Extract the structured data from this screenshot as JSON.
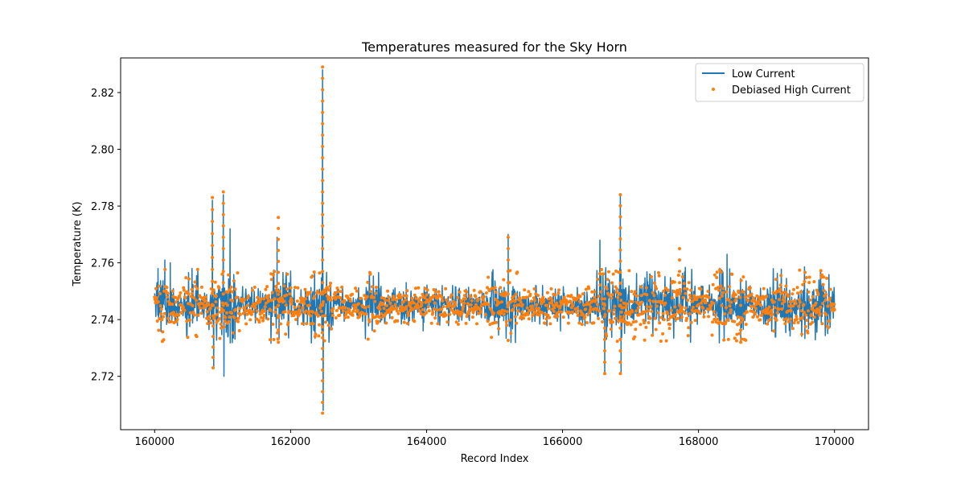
{
  "chart_data": {
    "type": "line",
    "title": "Temperatures measured for the Sky Horn",
    "xlabel": "Record Index",
    "ylabel": "Temperature (K)",
    "xlim": [
      159500,
      170500
    ],
    "ylim": [
      2.7012,
      2.8322
    ],
    "x_ticks": [
      160000,
      162000,
      164000,
      166000,
      168000,
      170000
    ],
    "x_tick_labels": [
      "160000",
      "162000",
      "164000",
      "166000",
      "168000",
      "170000"
    ],
    "y_ticks": [
      2.72,
      2.74,
      2.76,
      2.78,
      2.8,
      2.82
    ],
    "y_tick_labels": [
      "2.72",
      "2.74",
      "2.76",
      "2.78",
      "2.80",
      "2.82"
    ],
    "grid": false,
    "legend_position": "top-right",
    "baseline": 2.745,
    "series": [
      {
        "name": "Low Current",
        "style": "line",
        "color": "#1f77b4",
        "x_range": [
          160000,
          170000
        ],
        "spikes": [
          {
            "x": 160050,
            "y": 2.758
          },
          {
            "x": 160150,
            "y": 2.761
          },
          {
            "x": 160230,
            "y": 2.76
          },
          {
            "x": 160550,
            "y": 2.758
          },
          {
            "x": 160850,
            "y": 2.782
          },
          {
            "x": 160870,
            "y": 2.723
          },
          {
            "x": 161010,
            "y": 2.784
          },
          {
            "x": 161020,
            "y": 2.72
          },
          {
            "x": 161110,
            "y": 2.772
          },
          {
            "x": 161800,
            "y": 2.769
          },
          {
            "x": 161830,
            "y": 2.733
          },
          {
            "x": 162470,
            "y": 2.828
          },
          {
            "x": 162480,
            "y": 2.708
          },
          {
            "x": 163700,
            "y": 2.753
          },
          {
            "x": 163950,
            "y": 2.736
          },
          {
            "x": 165200,
            "y": 2.77
          },
          {
            "x": 165970,
            "y": 2.736
          },
          {
            "x": 166550,
            "y": 2.768
          },
          {
            "x": 166620,
            "y": 2.721
          },
          {
            "x": 166850,
            "y": 2.784
          },
          {
            "x": 166860,
            "y": 2.721
          },
          {
            "x": 168420,
            "y": 2.763
          },
          {
            "x": 168620,
            "y": 2.732
          }
        ]
      },
      {
        "name": "Debiased High Current",
        "style": "scatter",
        "color": "#ff7f0e",
        "x_range": [
          160000,
          170000
        ],
        "spikes": [
          {
            "x": 160850,
            "y": 2.783
          },
          {
            "x": 160860,
            "y": 2.723
          },
          {
            "x": 161010,
            "y": 2.785
          },
          {
            "x": 161820,
            "y": 2.776
          },
          {
            "x": 161820,
            "y": 2.732
          },
          {
            "x": 162470,
            "y": 2.829
          },
          {
            "x": 162470,
            "y": 2.707
          },
          {
            "x": 165200,
            "y": 2.769
          },
          {
            "x": 166620,
            "y": 2.721
          },
          {
            "x": 166850,
            "y": 2.784
          },
          {
            "x": 166850,
            "y": 2.721
          },
          {
            "x": 167720,
            "y": 2.765
          },
          {
            "x": 168620,
            "y": 2.732
          }
        ]
      }
    ]
  }
}
